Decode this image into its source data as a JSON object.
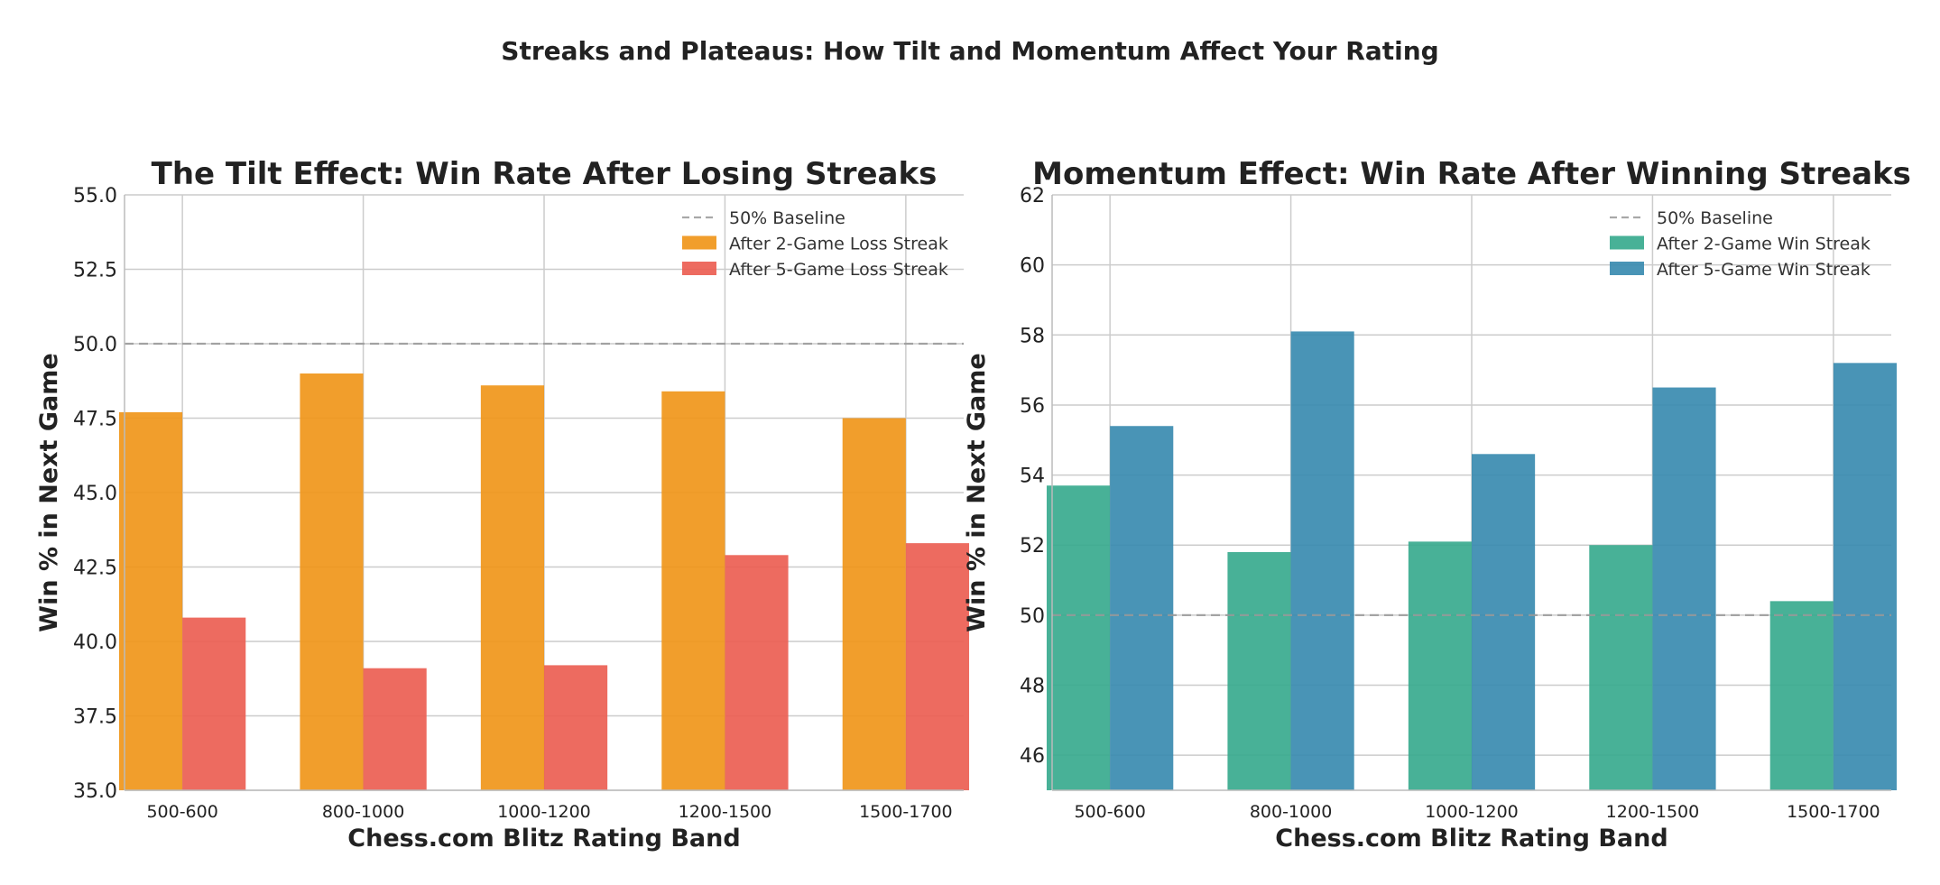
{
  "figure_title": "Streaks and Plateaus: How Tilt and Momentum Affect Your Rating",
  "chart_data": [
    {
      "type": "bar",
      "title": "The Tilt Effect: Win Rate After Losing Streaks",
      "xlabel": "Chess.com Blitz Rating Band",
      "ylabel": "Win % in Next Game",
      "categories": [
        "500-600",
        "800-1000",
        "1000-1200",
        "1200-1500",
        "1500-1700"
      ],
      "series": [
        {
          "name": "After 2-Game Loss Streak",
          "color": "#f0961a",
          "values": [
            47.7,
            49.0,
            48.6,
            48.4,
            47.5
          ]
        },
        {
          "name": "After 5-Game Loss Streak",
          "color": "#eb5e52",
          "values": [
            40.8,
            39.1,
            39.2,
            42.9,
            43.3
          ]
        }
      ],
      "baseline": {
        "label": "50% Baseline",
        "value": 50,
        "color": "#aaaaaa"
      },
      "ylim": [
        35,
        55
      ],
      "yticks": [
        35.0,
        37.5,
        40.0,
        42.5,
        45.0,
        47.5,
        50.0,
        52.5,
        55.0
      ],
      "ytick_labels": [
        "35.0",
        "37.5",
        "40.0",
        "42.5",
        "45.0",
        "47.5",
        "50.0",
        "52.5",
        "55.0"
      ],
      "grid": true,
      "legend": "top-right"
    },
    {
      "type": "bar",
      "title": "Momentum Effect: Win Rate After Winning Streaks",
      "xlabel": "Chess.com Blitz Rating Band",
      "ylabel": "Win % in Next Game",
      "categories": [
        "500-600",
        "800-1000",
        "1000-1200",
        "1200-1500",
        "1500-1700"
      ],
      "series": [
        {
          "name": "After 2-Game Win Streak",
          "color": "#38aa8e",
          "values": [
            53.7,
            51.8,
            52.1,
            52.0,
            50.4
          ]
        },
        {
          "name": "After 5-Game Win Streak",
          "color": "#3a8bb0",
          "values": [
            55.4,
            58.1,
            54.6,
            56.5,
            57.2
          ]
        }
      ],
      "baseline": {
        "label": "50% Baseline",
        "value": 50,
        "color": "#aaaaaa"
      },
      "ylim": [
        45,
        62
      ],
      "yticks": [
        46,
        48,
        50,
        52,
        54,
        56,
        58,
        60,
        62
      ],
      "ytick_labels": [
        "46",
        "48",
        "50",
        "52",
        "54",
        "56",
        "58",
        "60",
        "62"
      ],
      "grid": true,
      "legend": "top-right"
    }
  ]
}
